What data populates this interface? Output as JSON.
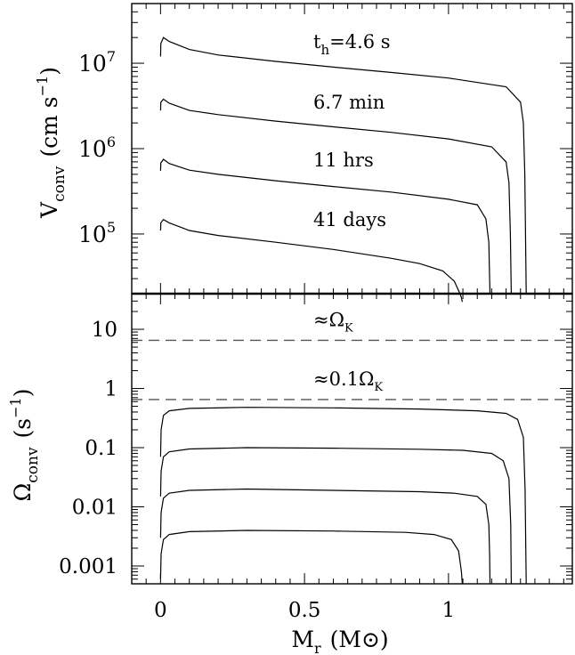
{
  "chart_data": [
    {
      "type": "line",
      "scale": "log",
      "ylim": [
        20000,
        50000000
      ],
      "xlim": [
        -0.1,
        1.43
      ],
      "grid": false,
      "ylabel_main": "V",
      "ylabel_sub": "conv",
      "ylabel_rest": "(cm s",
      "ylabel_exp": "−1",
      "ylabel_close": ")",
      "ytick_labels": [
        {
          "value": 100000,
          "base": "10",
          "exp": "5"
        },
        {
          "value": 1000000,
          "base": "10",
          "exp": "6"
        },
        {
          "value": 10000000,
          "base": "10",
          "exp": "7"
        }
      ],
      "series": [
        {
          "name": "t_h=4.6 s",
          "x": [
            0,
            0.001,
            0.01,
            0.03,
            0.1,
            0.2,
            0.4,
            0.6,
            0.8,
            1.0,
            1.2,
            1.25,
            1.26,
            1.265,
            1.27
          ],
          "y": [
            12000000,
            17000000,
            20000000,
            18000000,
            14500000,
            12500000,
            10500000,
            9000000,
            7800000,
            6700000,
            5300000,
            3500000,
            2000000,
            500000,
            20000
          ]
        },
        {
          "name": "6.7 min",
          "x": [
            0,
            0.001,
            0.01,
            0.03,
            0.1,
            0.2,
            0.4,
            0.6,
            0.8,
            1.0,
            1.15,
            1.2,
            1.21,
            1.215,
            1.218
          ],
          "y": [
            2800000,
            3500000,
            3800000,
            3400000,
            2800000,
            2500000,
            2100000,
            1800000,
            1550000,
            1300000,
            1050000,
            700000,
            400000,
            100000,
            20000
          ]
        },
        {
          "name": "11 hrs",
          "x": [
            0,
            0.001,
            0.01,
            0.03,
            0.1,
            0.2,
            0.4,
            0.6,
            0.8,
            1.0,
            1.1,
            1.13,
            1.14,
            1.142,
            1.144
          ],
          "y": [
            550000,
            680000,
            750000,
            670000,
            560000,
            500000,
            420000,
            360000,
            310000,
            255000,
            220000,
            150000,
            80000,
            40000,
            20000
          ]
        },
        {
          "name": "41 days",
          "x": [
            0,
            0.001,
            0.01,
            0.03,
            0.1,
            0.2,
            0.4,
            0.6,
            0.8,
            0.9,
            0.98,
            1.02,
            1.04,
            1.045,
            1.048
          ],
          "y": [
            110000,
            135000,
            148000,
            135000,
            110000,
            96000,
            80000,
            66000,
            52000,
            45000,
            37000,
            28000,
            20000,
            18000,
            16000
          ]
        }
      ],
      "annotations": [
        {
          "text": "t",
          "sub": "h",
          "rest": "=4.6 s"
        },
        {
          "text": "6.7 min"
        },
        {
          "text": "11 hrs"
        },
        {
          "text": "41 days"
        }
      ]
    },
    {
      "type": "line",
      "scale": "log",
      "ylim": [
        0.0005,
        40
      ],
      "xlim": [
        -0.1,
        1.43
      ],
      "grid": false,
      "xlabel_main": "M",
      "xlabel_sub": "r",
      "xlabel_rest": "(M",
      "xlabel_sym": "⊙",
      "xlabel_close": ")",
      "ylabel_main": "Ω",
      "ylabel_sub": "conv",
      "ylabel_rest": "(s",
      "ylabel_exp": "−1",
      "ylabel_close": ")",
      "xticks": [
        0,
        0.5,
        1
      ],
      "xtick_labels": [
        "0",
        "0.5",
        "1"
      ],
      "ytick_labels": [
        {
          "value": 10,
          "label": "10"
        },
        {
          "value": 1,
          "label": "1"
        },
        {
          "value": 0.1,
          "label": "0.1"
        },
        {
          "value": 0.01,
          "label": "0.01"
        },
        {
          "value": 0.001,
          "label": "0.001"
        }
      ],
      "reference_lines": [
        {
          "y": 6.5,
          "text": "≈Ω",
          "sub": "K"
        },
        {
          "y": 0.65,
          "text": "≈0.1Ω",
          "sub": "K"
        }
      ],
      "series": [
        {
          "x": [
            0,
            0.002,
            0.01,
            0.03,
            0.1,
            0.3,
            0.6,
            0.9,
            1.1,
            1.2,
            1.24,
            1.26,
            1.266,
            1.27
          ],
          "y": [
            0.07,
            0.2,
            0.35,
            0.42,
            0.46,
            0.48,
            0.47,
            0.45,
            0.42,
            0.38,
            0.3,
            0.15,
            0.02,
            0.0005
          ]
        },
        {
          "x": [
            0,
            0.002,
            0.01,
            0.03,
            0.1,
            0.3,
            0.6,
            0.9,
            1.05,
            1.15,
            1.19,
            1.21,
            1.216,
            1.218
          ],
          "y": [
            0.015,
            0.04,
            0.07,
            0.085,
            0.095,
            0.1,
            0.098,
            0.094,
            0.09,
            0.08,
            0.06,
            0.03,
            0.005,
            0.0005
          ]
        },
        {
          "x": [
            0,
            0.002,
            0.01,
            0.03,
            0.1,
            0.3,
            0.6,
            0.9,
            1.02,
            1.1,
            1.13,
            1.14,
            1.143,
            1.144
          ],
          "y": [
            0.003,
            0.008,
            0.014,
            0.017,
            0.019,
            0.02,
            0.019,
            0.018,
            0.017,
            0.015,
            0.011,
            0.005,
            0.0015,
            0.0005
          ]
        },
        {
          "x": [
            0,
            0.002,
            0.01,
            0.03,
            0.1,
            0.3,
            0.6,
            0.85,
            0.95,
            1.01,
            1.035,
            1.045,
            1.048
          ],
          "y": [
            0.0006,
            0.0016,
            0.0028,
            0.0034,
            0.0038,
            0.004,
            0.0039,
            0.0037,
            0.0034,
            0.0028,
            0.0018,
            0.0008,
            0.0005
          ]
        }
      ]
    }
  ]
}
